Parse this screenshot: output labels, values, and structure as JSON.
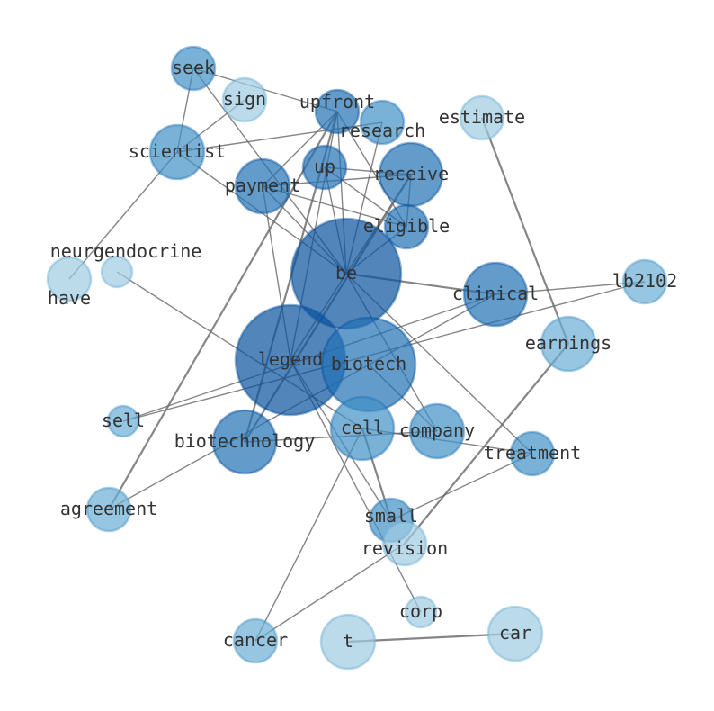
{
  "graph": {
    "nodes": [
      "seek",
      "sign",
      "upfront",
      "research",
      "estimate",
      "scientist",
      "up",
      "receive",
      "payment",
      "eligible",
      "neurgendocrine",
      "have",
      "be",
      "clinical",
      "lb2102",
      "earnings",
      "legend",
      "biotech",
      "sell",
      "cell",
      "company",
      "biotechnology",
      "treatment",
      "agreement",
      "small",
      "revision",
      "corp",
      "cancer",
      "t",
      "car"
    ],
    "edges": [
      [
        "seek",
        "scientist"
      ],
      [
        "seek",
        "upfront"
      ],
      [
        "seek",
        "be"
      ],
      [
        "sign",
        "scientist"
      ],
      [
        "scientist",
        "research"
      ],
      [
        "scientist",
        "be"
      ],
      [
        "scientist",
        "have"
      ],
      [
        "upfront",
        "payment"
      ],
      [
        "upfront",
        "legend"
      ],
      [
        "upfront",
        "be"
      ],
      [
        "upfront",
        "eligible"
      ],
      [
        "upfront",
        "biotechnology"
      ],
      [
        "research",
        "be"
      ],
      [
        "up",
        "receive"
      ],
      [
        "up",
        "eligible"
      ],
      [
        "up",
        "be"
      ],
      [
        "payment",
        "receive"
      ],
      [
        "payment",
        "eligible"
      ],
      [
        "payment",
        "be"
      ],
      [
        "payment",
        "legend"
      ],
      [
        "receive",
        "be"
      ],
      [
        "receive",
        "eligible"
      ],
      [
        "receive",
        "biotechnology"
      ],
      [
        "eligible",
        "be"
      ],
      [
        "be",
        "clinical"
      ],
      [
        "be",
        "treatment"
      ],
      [
        "be",
        "company"
      ],
      [
        "be",
        "legend"
      ],
      [
        "neurgendocrine",
        "cell"
      ],
      [
        "clinical",
        "lb2102"
      ],
      [
        "clinical",
        "sell"
      ],
      [
        "clinical",
        "agreement"
      ],
      [
        "lb2102",
        "sell"
      ],
      [
        "estimate",
        "earnings"
      ],
      [
        "earnings",
        "revision"
      ],
      [
        "biotech",
        "company"
      ],
      [
        "biotechnology",
        "company"
      ],
      [
        "cell",
        "treatment"
      ],
      [
        "cell",
        "cancer"
      ],
      [
        "cell",
        "small"
      ],
      [
        "small",
        "treatment"
      ],
      [
        "revision",
        "cancer"
      ],
      [
        "corp",
        "legend"
      ],
      [
        "legend",
        "small"
      ],
      [
        "upfront",
        "agreement"
      ],
      [
        "t",
        "car"
      ]
    ],
    "colormap": [
      "#c6dbef",
      "#9ecae1",
      "#6baed6",
      "#4292c6",
      "#2171b5",
      "#08519c"
    ]
  }
}
